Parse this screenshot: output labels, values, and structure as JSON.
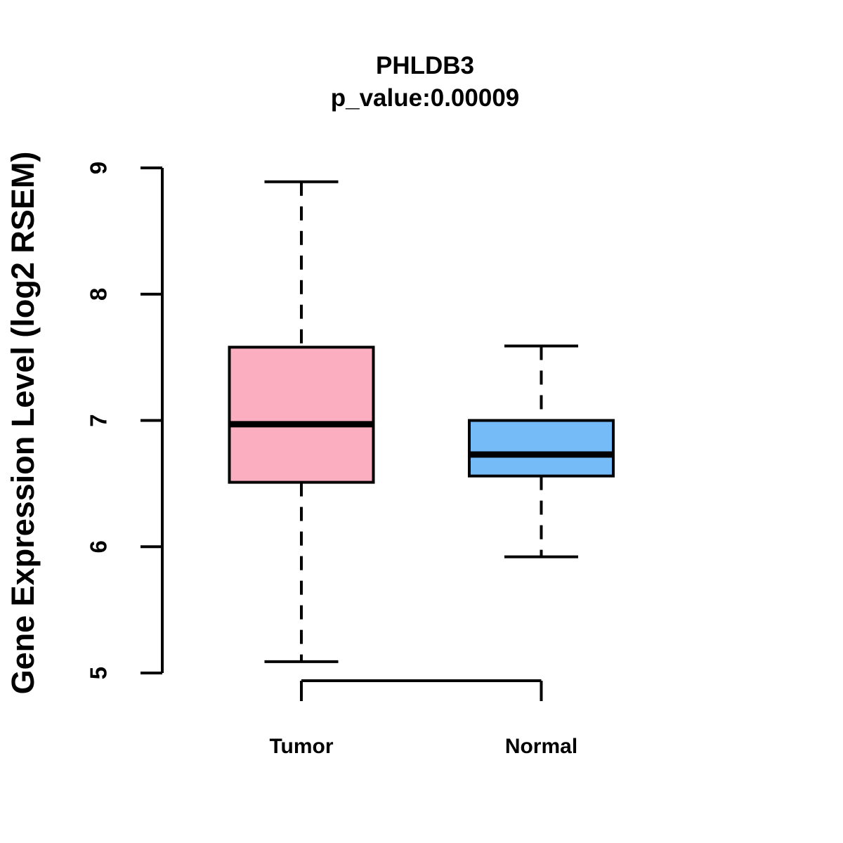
{
  "chart_data": {
    "type": "boxplot",
    "title": "PHLDB3",
    "subtitle": "p_value:0.00009",
    "ylabel": "Gene Expression Level (log2 RSEM)",
    "xlabel": "",
    "ylim": [
      5,
      9
    ],
    "yticks": [
      5,
      6,
      7,
      8,
      9
    ],
    "grid": false,
    "legend": false,
    "categories": [
      "Tumor",
      "Normal"
    ],
    "series": [
      {
        "name": "Tumor",
        "color": "#FCAEC1",
        "whisker_low": 5.09,
        "q1": 6.51,
        "median": 6.97,
        "q3": 7.58,
        "whisker_high": 8.89
      },
      {
        "name": "Normal",
        "color": "#74BBF7",
        "whisker_low": 5.92,
        "q1": 6.56,
        "median": 6.73,
        "q3": 7.0,
        "whisker_high": 7.59
      }
    ],
    "colors": {
      "axis": "#000000",
      "box_border": "#000000",
      "median": "#000000",
      "text": "#000000",
      "background": "#ffffff"
    }
  }
}
